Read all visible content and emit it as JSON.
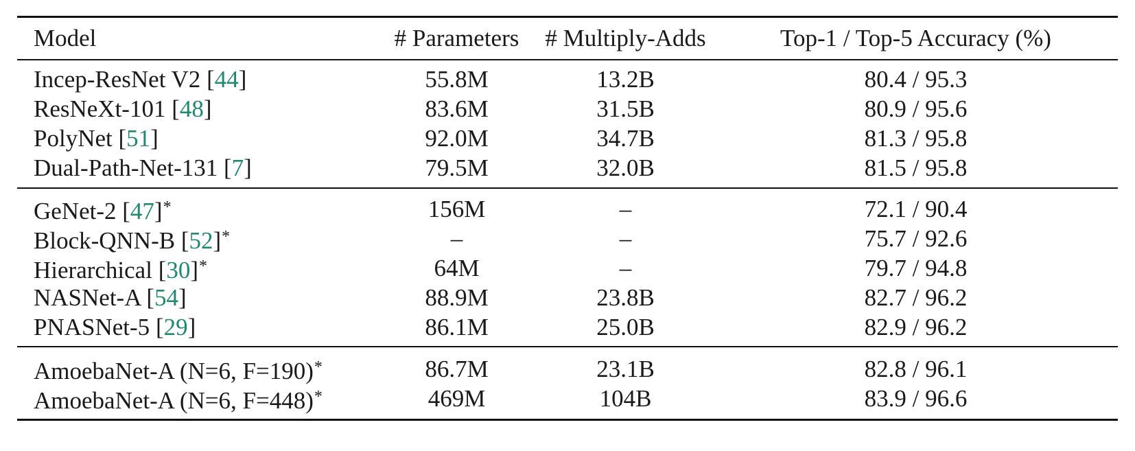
{
  "table": {
    "headers": {
      "model": "Model",
      "params": "# Parameters",
      "madds": "# Multiply-Adds",
      "accuracy": "Top-1 / Top-5 Accuracy (%)"
    },
    "groups": [
      {
        "rows": [
          {
            "model": "Incep-ResNet V2 ",
            "cite": "44",
            "star": "",
            "params": "55.8M",
            "madds": "13.2B",
            "accuracy": "80.4 / 95.3"
          },
          {
            "model": "ResNeXt-101 ",
            "cite": "48",
            "star": "",
            "params": "83.6M",
            "madds": "31.5B",
            "accuracy": "80.9 / 95.6"
          },
          {
            "model": "PolyNet ",
            "cite": "51",
            "star": "",
            "params": "92.0M",
            "madds": "34.7B",
            "accuracy": "81.3 / 95.8"
          },
          {
            "model": "Dual-Path-Net-131 ",
            "cite": "7",
            "star": "",
            "params": "79.5M",
            "madds": "32.0B",
            "accuracy": "81.5 / 95.8"
          }
        ]
      },
      {
        "rows": [
          {
            "model": "GeNet-2 ",
            "cite": "47",
            "star": "*",
            "params": "156M",
            "madds": "–",
            "accuracy": "72.1 / 90.4"
          },
          {
            "model": "Block-QNN-B ",
            "cite": "52",
            "star": "*",
            "params": "–",
            "madds": "–",
            "accuracy": "75.7 / 92.6"
          },
          {
            "model": "Hierarchical ",
            "cite": "30",
            "star": "*",
            "params": "64M",
            "madds": "–",
            "accuracy": "79.7 / 94.8"
          },
          {
            "model": "NASNet-A ",
            "cite": "54",
            "star": "",
            "params": "88.9M",
            "madds": "23.8B",
            "accuracy": "82.7 / 96.2"
          },
          {
            "model": "PNASNet-5 ",
            "cite": "29",
            "star": "",
            "params": "86.1M",
            "madds": "25.0B",
            "accuracy": "82.9 / 96.2"
          }
        ]
      },
      {
        "rows": [
          {
            "model": "AmoebaNet-A (N=6, F=190)",
            "cite": "",
            "star": "*",
            "params": "86.7M",
            "madds": "23.1B",
            "accuracy": "82.8 / 96.1"
          },
          {
            "model": "AmoebaNet-A (N=6, F=448)",
            "cite": "",
            "star": "*",
            "params": "469M",
            "madds": "104B",
            "accuracy": "83.9 / 96.6"
          }
        ]
      }
    ]
  },
  "colors": {
    "citation": "#1f8a70",
    "text": "#1a1a1a",
    "rule": "#111111"
  }
}
